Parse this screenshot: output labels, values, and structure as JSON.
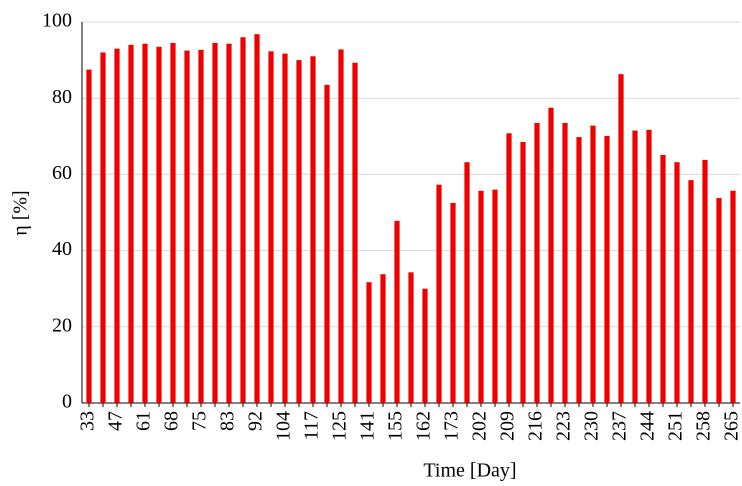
{
  "chart_data": {
    "type": "bar",
    "x_label": "Time [Day]",
    "y_label": "η [%]",
    "categories": [
      "33",
      null,
      "47",
      null,
      "61",
      null,
      "68",
      null,
      "75",
      null,
      "83",
      null,
      "92",
      null,
      "104",
      null,
      "117",
      null,
      "125",
      null,
      "141",
      null,
      "155",
      null,
      "162",
      null,
      "173",
      null,
      "202",
      null,
      "209",
      null,
      "216",
      null,
      "223",
      null,
      "230",
      null,
      "237",
      null,
      "244",
      null,
      "251",
      null,
      "258",
      null,
      "265"
    ],
    "values": [
      87.5,
      92,
      93,
      94,
      94.3,
      93.5,
      94.5,
      92.5,
      92.7,
      94.5,
      94.3,
      96,
      96.8,
      92.3,
      91.7,
      90,
      91,
      83.5,
      92.8,
      89.3,
      31.7,
      33.8,
      47.8,
      34.3,
      30,
      57.3,
      52.5,
      63.2,
      55.7,
      56,
      70.8,
      68.5,
      73.5,
      77.5,
      73.5,
      69.8,
      72.8,
      70.1,
      86.3,
      71.5,
      71.7,
      65.1,
      63.2,
      58.5,
      63.8,
      53.8,
      55.7
    ],
    "color": "#ee0000",
    "ylim": [
      0,
      100
    ],
    "yticks": [
      0,
      20,
      40,
      60,
      80,
      100
    ],
    "grid": true
  }
}
